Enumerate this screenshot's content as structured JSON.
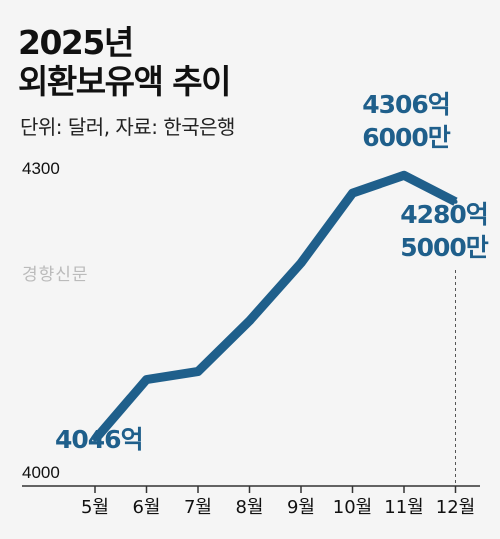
{
  "title_lines": [
    "2025년",
    "외환보유액 추이"
  ],
  "subtitle": "단위: 달러, 자료: 한국은행",
  "watermark": "경향신문",
  "colors": {
    "line": "#1f5f8b",
    "annotation": "#1f5f8b",
    "axis": "#333333",
    "text": "#111111",
    "background": "#f5f5f5"
  },
  "chart_data": {
    "type": "line",
    "categories": [
      "5월",
      "6월",
      "7월",
      "8월",
      "9월",
      "10월",
      "11월",
      "12월"
    ],
    "values": [
      4046,
      4105,
      4113,
      4163,
      4220,
      4289,
      4306.6,
      4280.5
    ],
    "y_ticks": [
      4000,
      4300
    ],
    "ylim": [
      4000,
      4300
    ],
    "grid": false,
    "annotations": [
      {
        "index": 0,
        "lines": [
          "4046억"
        ]
      },
      {
        "index": 6,
        "lines": [
          "4306억",
          "6000만"
        ]
      },
      {
        "index": 7,
        "lines": [
          "4280억",
          "5000만"
        ]
      }
    ]
  }
}
